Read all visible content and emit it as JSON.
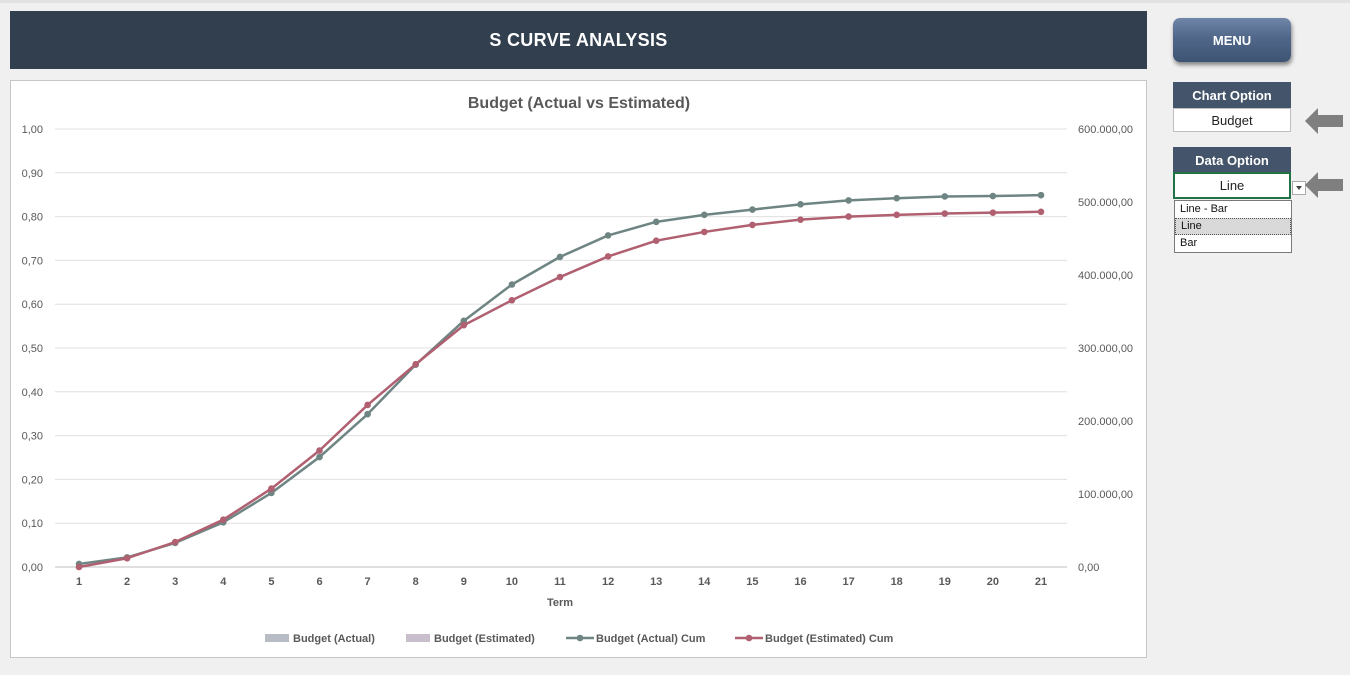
{
  "header": {
    "title": "S CURVE ANALYSIS",
    "menu_label": "MENU"
  },
  "chart_option": {
    "header": "Chart Option",
    "value": "Budget"
  },
  "data_option": {
    "header": "Data Option",
    "value": "Line",
    "options": [
      "Line - Bar",
      "Line",
      "Bar"
    ],
    "selected_index": 1
  },
  "colors": {
    "banner": "#323f4f",
    "actual_cum": "#6e8583",
    "estimated_cum": "#b06070",
    "bar_actual": "#b8bcc4",
    "bar_estimated": "#c9bfcc"
  },
  "chart_data": {
    "type": "line",
    "title": "Budget (Actual vs Estimated)",
    "xlabel": "Term",
    "ylabel": "",
    "categories": [
      "1",
      "2",
      "3",
      "4",
      "5",
      "6",
      "7",
      "8",
      "9",
      "10",
      "11",
      "12",
      "13",
      "14",
      "15",
      "16",
      "17",
      "18",
      "19",
      "20",
      "21"
    ],
    "ylim": [
      0,
      1
    ],
    "yticks": [
      "0,00",
      "0,10",
      "0,20",
      "0,30",
      "0,40",
      "0,50",
      "0,60",
      "0,70",
      "0,80",
      "0,90",
      "1,00"
    ],
    "y2lim": [
      0,
      600000
    ],
    "y2ticks": [
      "0,00",
      "100.000,00",
      "200.000,00",
      "300.000,00",
      "400.000,00",
      "500.000,00",
      "600.000,00"
    ],
    "grid": true,
    "legend_position": "bottom",
    "legend": [
      "Budget (Actual)",
      "Budget (Estimated)",
      "Budget (Actual) Cum",
      "Budget (Estimated) Cum"
    ],
    "series": [
      {
        "name": "Budget (Actual) Cum",
        "axis": "left",
        "values": [
          0.007,
          0.022,
          0.055,
          0.102,
          0.169,
          0.251,
          0.349,
          0.462,
          0.562,
          0.645,
          0.708,
          0.757,
          0.788,
          0.804,
          0.816,
          0.828,
          0.837,
          0.842,
          0.846,
          0.847,
          0.849
        ]
      },
      {
        "name": "Budget (Estimated) Cum",
        "axis": "left",
        "values": [
          0.0,
          0.02,
          0.057,
          0.108,
          0.179,
          0.266,
          0.37,
          0.463,
          0.552,
          0.609,
          0.662,
          0.709,
          0.745,
          0.765,
          0.781,
          0.793,
          0.8,
          0.804,
          0.807,
          0.809,
          0.811
        ]
      }
    ]
  }
}
